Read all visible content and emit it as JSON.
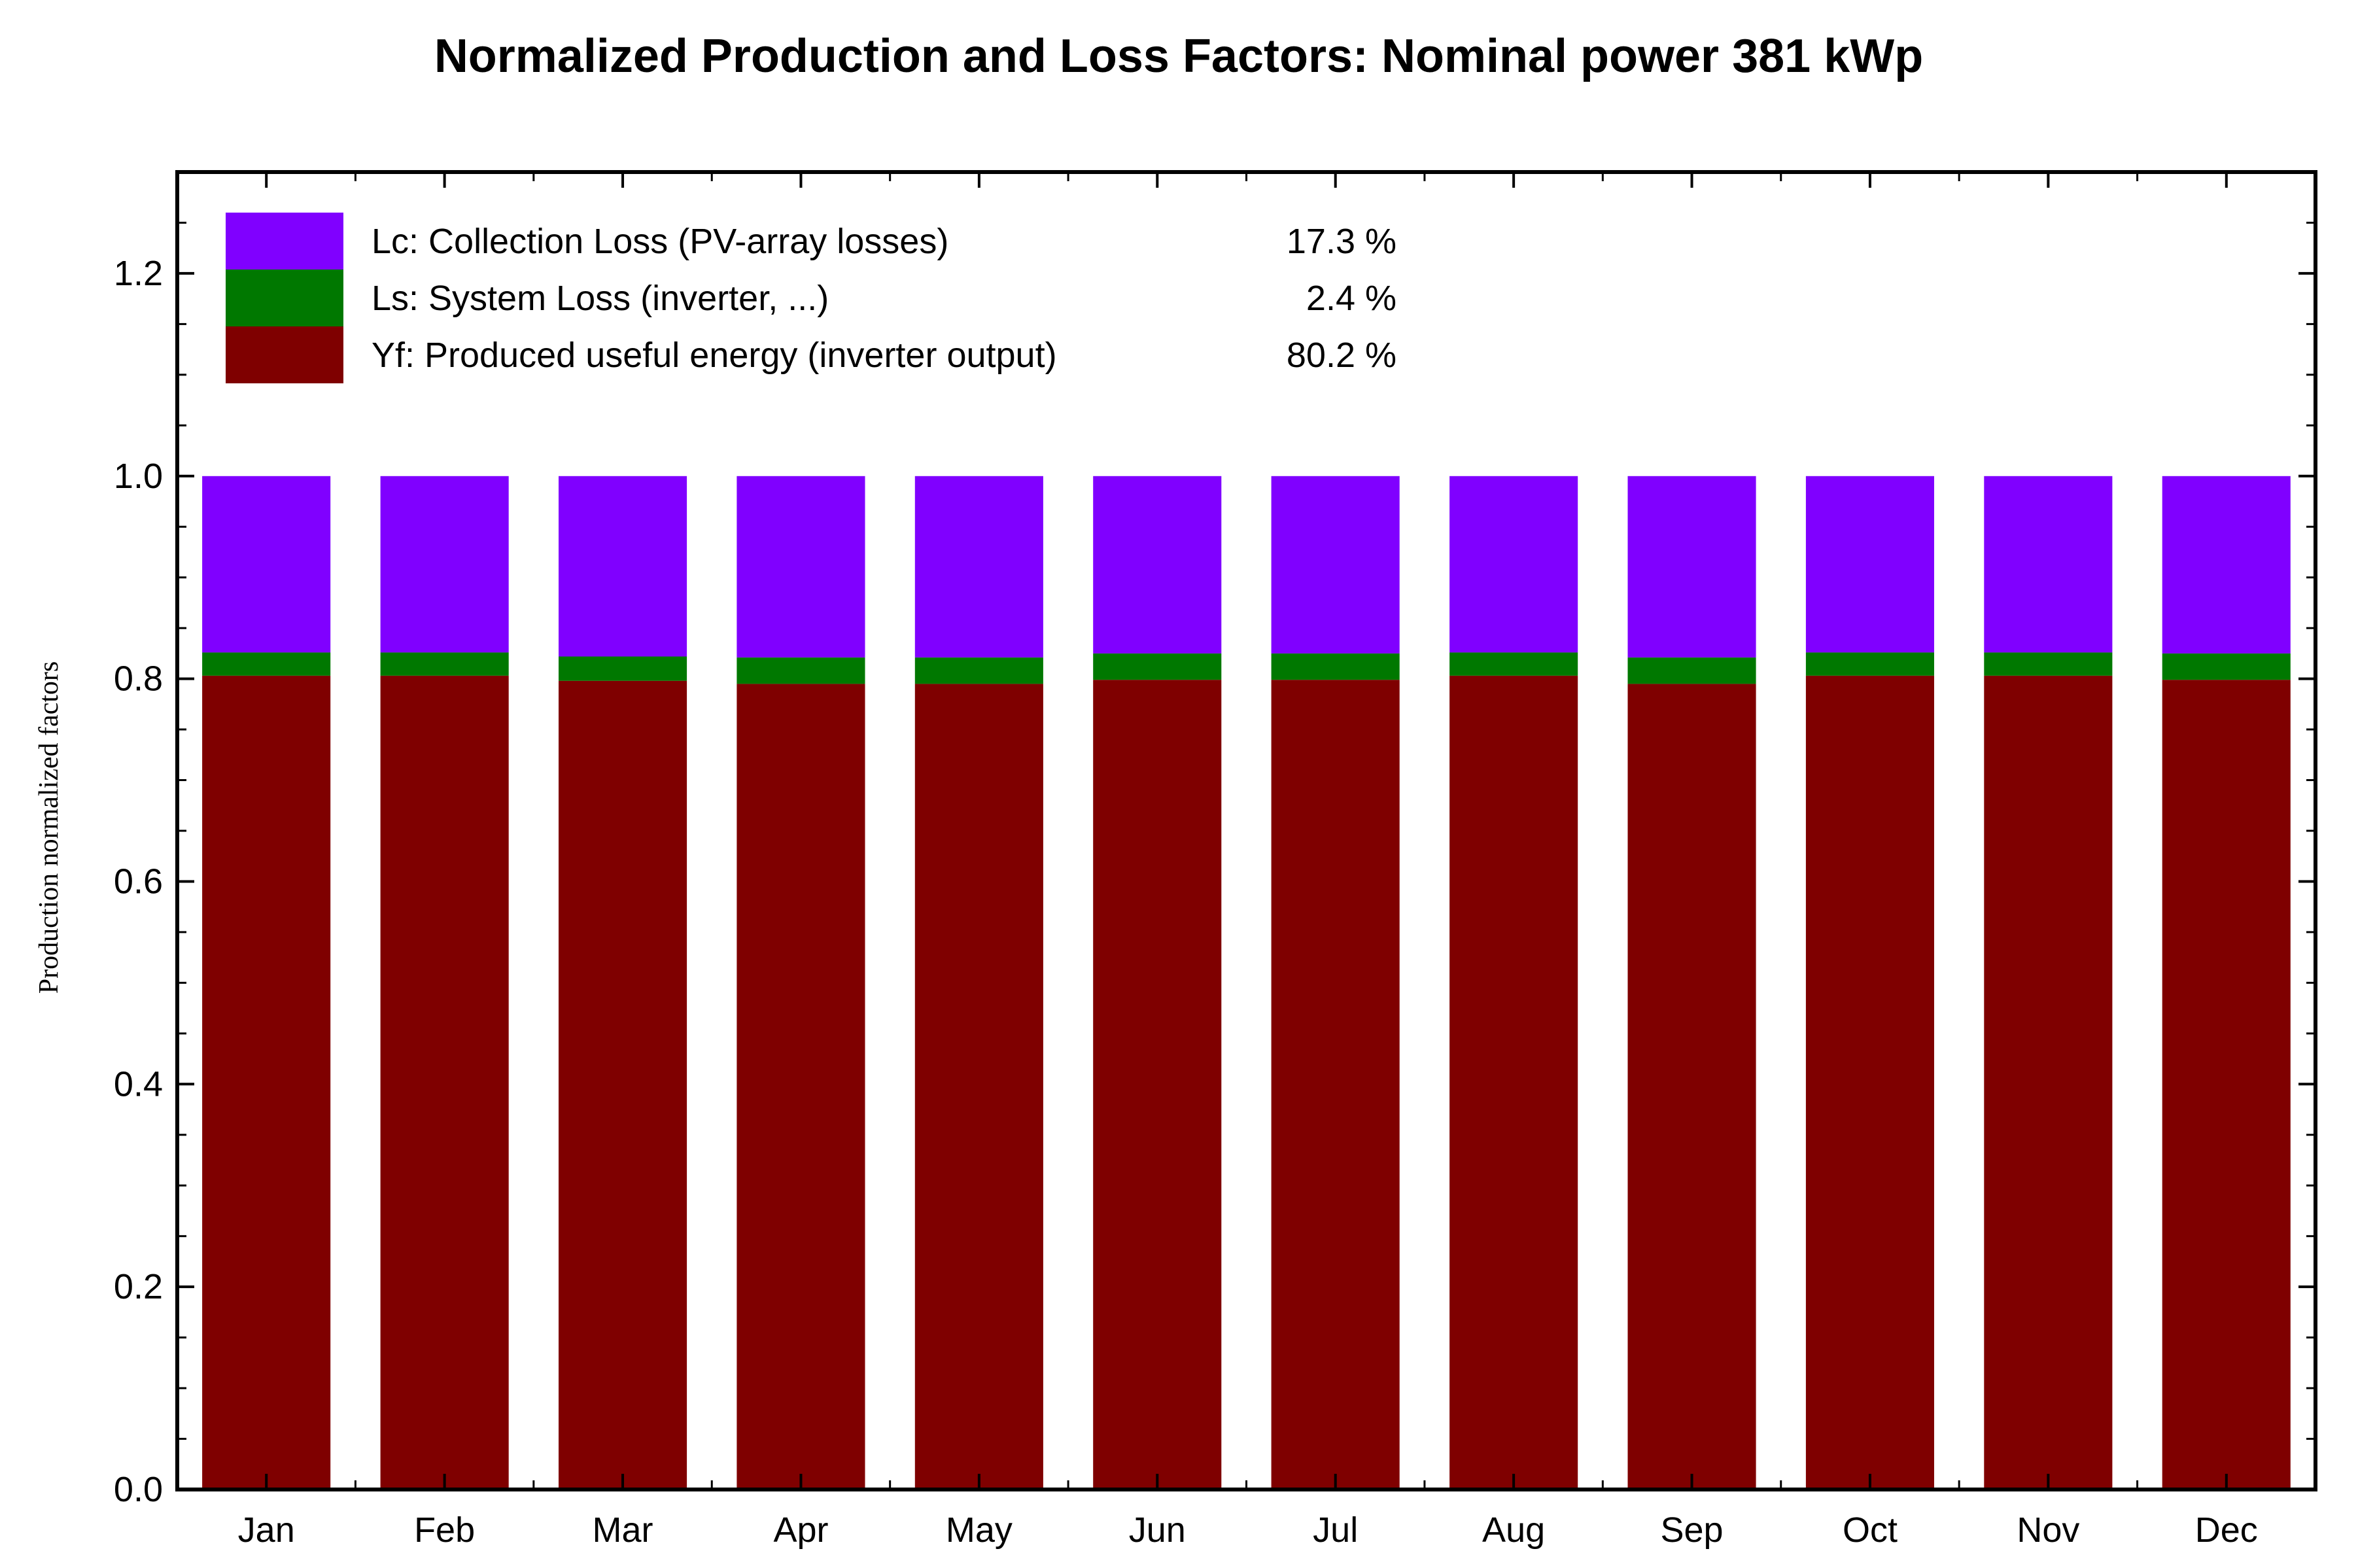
{
  "chart_data": {
    "type": "bar",
    "stacked": true,
    "title": "Normalized Production and Loss Factors:  Nominal power 381 kWp",
    "xlabel": "",
    "ylabel": "Production normalized factors",
    "ylim": [
      0,
      1.3
    ],
    "yticks": [
      "0.0",
      "0.2",
      "0.4",
      "0.6",
      "0.8",
      "1.0",
      "1.2"
    ],
    "y_minor_step": 0.05,
    "grid": false,
    "legend_position": "top-left",
    "categories": [
      "Jan",
      "Feb",
      "Mar",
      "Apr",
      "May",
      "Jun",
      "Jul",
      "Aug",
      "Sep",
      "Oct",
      "Nov",
      "Dec"
    ],
    "series": [
      {
        "name": "Yf: Produced useful energy  (inverter output)",
        "percent": "80.2 %",
        "color": "#7f0000",
        "values": [
          0.803,
          0.803,
          0.798,
          0.795,
          0.795,
          0.799,
          0.799,
          0.803,
          0.795,
          0.803,
          0.803,
          0.799
        ]
      },
      {
        "name": "Ls: System Loss  (inverter, ...)",
        "percent": "2.4 %",
        "color": "#007800",
        "values": [
          0.023,
          0.023,
          0.024,
          0.026,
          0.026,
          0.026,
          0.026,
          0.023,
          0.026,
          0.023,
          0.023,
          0.026
        ]
      },
      {
        "name": "Lc: Collection Loss (PV-array losses)",
        "percent": "17.3 %",
        "color": "#8000ff",
        "values": [
          0.174,
          0.174,
          0.178,
          0.179,
          0.179,
          0.175,
          0.175,
          0.174,
          0.179,
          0.174,
          0.174,
          0.175
        ]
      }
    ],
    "legend_order": [
      2,
      1,
      0
    ]
  }
}
